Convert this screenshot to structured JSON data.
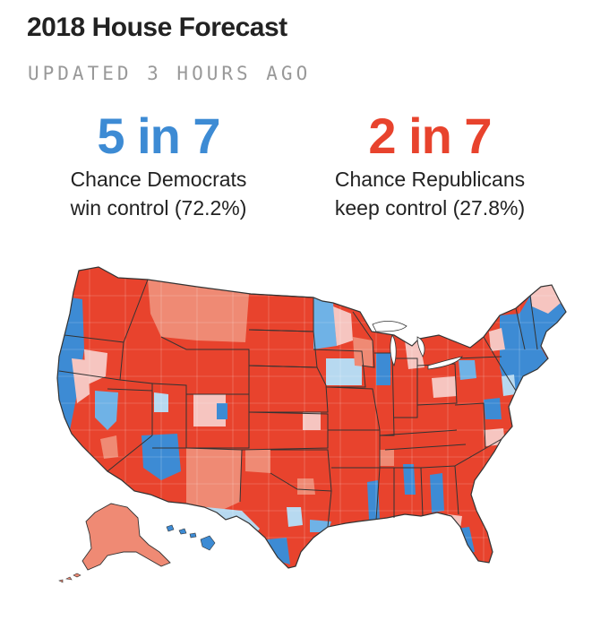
{
  "header": {
    "title": "2018 House Forecast",
    "updated": "UPDATED 3 HOURS AGO"
  },
  "odds": {
    "democrats": {
      "headline": "5 in 7",
      "line1": "Chance Democrats",
      "line2": "win control (72.2%)",
      "probability_pct": 72.2,
      "color": "#3d8bd4"
    },
    "republicans": {
      "headline": "2 in 7",
      "line1": "Chance Republicans",
      "line2": "keep control (27.8%)",
      "probability_pct": 27.8,
      "color": "#e8432d"
    }
  },
  "map": {
    "name": "us-house-district-forecast-map",
    "palette": {
      "solid_rep": "#e8432d",
      "likely_rep": "#ef8a74",
      "lean_rep": "#f6c5c0",
      "lean_dem": "#b7d9f0",
      "likely_dem": "#6fb2e6",
      "solid_dem": "#3d8bd4",
      "border": "#333333"
    }
  }
}
